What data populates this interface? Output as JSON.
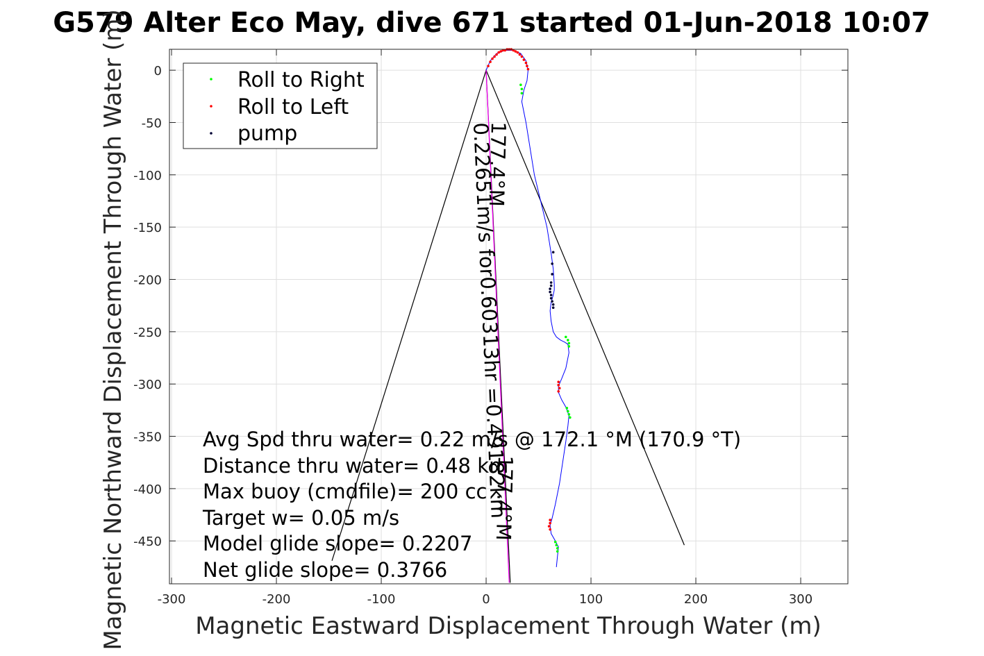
{
  "chart_data": {
    "type": "scatter",
    "title": "G579 Alter Eco May, dive 671 started 01-Jun-2018 10:07",
    "xlabel": "Magnetic Eastward Displacement Through Water (m)",
    "ylabel": "Magnetic Northward Displacement Through Water (m)",
    "xlim": [
      -302,
      345
    ],
    "ylim": [
      -491,
      20
    ],
    "xticks": [
      -300,
      -200,
      -100,
      0,
      100,
      200,
      300
    ],
    "yticks": [
      0,
      -50,
      -100,
      -150,
      -200,
      -250,
      -300,
      -350,
      -400,
      -450
    ],
    "grid": true,
    "legend_position": "top-left",
    "legend": [
      {
        "label": "Roll to Right",
        "color": "#00ff00"
      },
      {
        "label": "Roll to Left",
        "color": "#ff0000"
      },
      {
        "label": "pump",
        "color": "#000033"
      }
    ],
    "track": {
      "color": "#0000ff",
      "x": [
        0,
        4,
        10,
        18,
        26,
        33,
        38,
        40,
        39,
        36,
        34,
        38,
        42,
        46,
        52,
        58,
        62,
        64,
        65,
        65,
        64,
        62,
        61,
        62,
        64,
        67,
        71,
        75,
        78,
        79,
        76,
        72,
        69,
        69,
        72,
        76,
        79,
        78,
        76,
        73,
        70,
        66,
        63,
        61,
        62,
        66,
        69,
        68,
        67
      ],
      "y": [
        0,
        9,
        16,
        19,
        19,
        16,
        9,
        0,
        -10,
        -19,
        -30,
        -50,
        -75,
        -100,
        -125,
        -150,
        -175,
        -190,
        -205,
        -210,
        -215,
        -222,
        -230,
        -240,
        -250,
        -255,
        -258,
        -260,
        -262,
        -270,
        -285,
        -295,
        -302,
        -308,
        -315,
        -322,
        -330,
        -340,
        -355,
        -375,
        -395,
        -415,
        -428,
        -435,
        -443,
        -450,
        -456,
        -465,
        -475
      ]
    },
    "roll_right": {
      "color": "#00ff00",
      "x": [
        33,
        34,
        34,
        76,
        78,
        79,
        79,
        77,
        78,
        79,
        80,
        66,
        67,
        68,
        68
      ],
      "y": [
        -14,
        -18,
        -22,
        -255,
        -258,
        -261,
        -264,
        -323,
        -326,
        -329,
        -332,
        -451,
        -454,
        -457,
        -460
      ]
    },
    "roll_left": {
      "color": "#ff0000",
      "x": [
        2,
        4,
        6,
        8,
        10,
        12,
        14,
        16,
        18,
        20,
        22,
        24,
        26,
        28,
        30,
        32,
        34,
        36,
        38,
        39,
        40,
        69,
        69,
        70,
        69,
        61,
        61,
        60,
        61
      ],
      "y": [
        4,
        8,
        11,
        13,
        15,
        17,
        18,
        19,
        19,
        20,
        20,
        20,
        19,
        18,
        17,
        15,
        13,
        10,
        7,
        4,
        1,
        -298,
        -301,
        -304,
        -307,
        -430,
        -433,
        -436,
        -439
      ]
    },
    "pump": {
      "color": "#000033",
      "x": [
        64,
        63,
        63,
        62,
        62,
        61,
        61,
        62,
        62,
        63,
        64,
        64
      ],
      "y": [
        -174,
        -185,
        -195,
        -203,
        -206,
        -209,
        -212,
        -215,
        -218,
        -221,
        -224,
        -227
      ]
    },
    "lines": [
      {
        "name": "wedge",
        "color": "#000000",
        "x": [
          -147,
          0,
          189
        ],
        "y": [
          -469,
          0,
          -454
        ]
      },
      {
        "name": "heading-center",
        "color": "#000000",
        "x": [
          0,
          23
        ],
        "y": [
          0,
          -490
        ]
      },
      {
        "name": "heading-magenta",
        "color": "#ff00ff",
        "x": [
          0,
          22
        ],
        "y": [
          0,
          -490
        ]
      }
    ],
    "annotations": {
      "heading_top": "177.4°M",
      "heading_mid": "0.22651m/s for0.60313hr =0.49182km",
      "heading_low": "177.4°M"
    },
    "stats": [
      "Avg Spd thru water=  0.22 m/s @ 172.1 °M (170.9 °T)",
      "Distance thru water=  0.48 km",
      "Max buoy (cmdfile)= 200 cc",
      "Target w= 0.05 m/s",
      "Model glide slope= 0.2207",
      "Net glide slope= 0.3766"
    ]
  }
}
